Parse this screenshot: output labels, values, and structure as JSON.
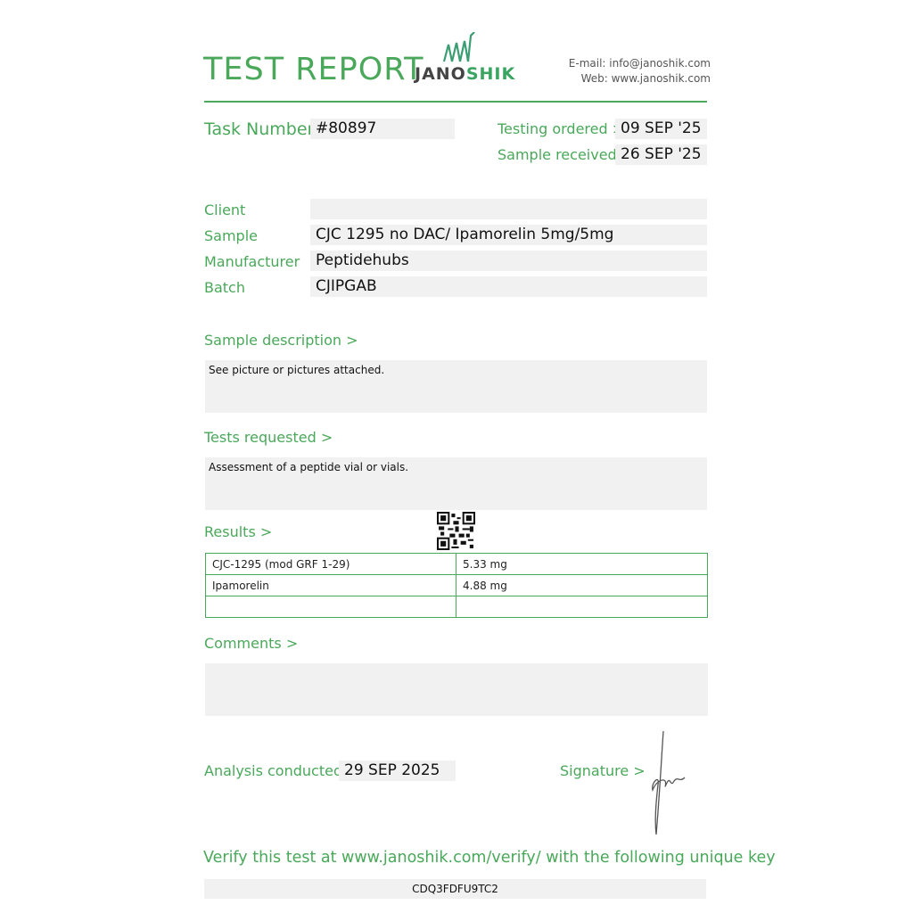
{
  "header": {
    "title": "TEST REPORT",
    "logo_text_dark": "JANO",
    "logo_text_green": "SHIK",
    "email": "E-mail: info@janoshik.com",
    "web": "Web: www.janoshik.com"
  },
  "task": {
    "label": "Task Number",
    "value": "#80897",
    "ordered_label": "Testing ordered  >",
    "ordered_value": "09 SEP '25",
    "received_label": "Sample received >",
    "received_value": "26 SEP '25"
  },
  "fields": [
    {
      "label": "Client",
      "value": ""
    },
    {
      "label": "Sample",
      "value": "CJC 1295 no DAC/ Ipamorelin 5mg/5mg"
    },
    {
      "label": "Manufacturer",
      "value": "Peptidehubs"
    },
    {
      "label": "Batch",
      "value": "CJIPGAB"
    }
  ],
  "sample_description": {
    "label": "Sample description >",
    "value": "See picture or pictures attached."
  },
  "tests_requested": {
    "label": "Tests requested >",
    "value": "Assessment of a peptide vial or vials."
  },
  "results": {
    "label": "Results >",
    "rows": [
      [
        "CJC-1295 (mod GRF 1-29)",
        "5.33 mg"
      ],
      [
        "Ipamorelin",
        "4.88 mg"
      ],
      [
        "",
        ""
      ]
    ]
  },
  "comments": {
    "label": "Comments >",
    "value": ""
  },
  "analysis": {
    "label": "Analysis conducted >",
    "value": "29 SEP 2025"
  },
  "signature": {
    "label": "Signature >"
  },
  "verify": {
    "text": "Verify this test at www.janoshik.com/verify/ with the following unique key",
    "key": "CDQ3FDFU9TC2"
  },
  "colors": {
    "accent": "#4aa85a",
    "field_bg": "#f1f1f1"
  }
}
